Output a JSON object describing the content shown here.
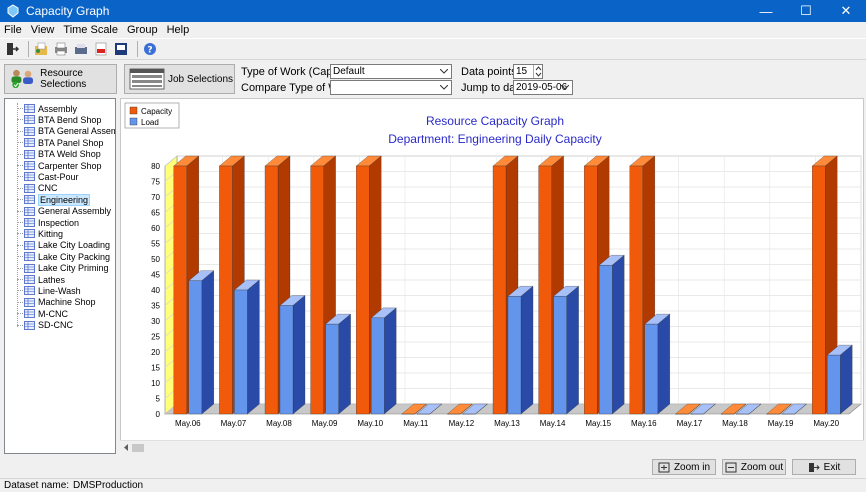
{
  "window": {
    "title": "Capacity Graph",
    "min": "—",
    "max": "☐",
    "close": "✕"
  },
  "menu": [
    "File",
    "View",
    "Time Scale",
    "Group",
    "Help"
  ],
  "toolbar_icons": [
    "exit-icon",
    "open-icon",
    "print-icon",
    "printer-setup-icon",
    "pdf-icon",
    "export-icon",
    "help-icon"
  ],
  "buttons": {
    "resource_selections": "Resource Selections",
    "job_selections": "Job Selections",
    "zoom_in": "Zoom in",
    "zoom_out": "Zoom out",
    "exit": "Exit"
  },
  "form": {
    "type_of_work_label": "Type of Work (Capacity):",
    "type_of_work_value": "Default",
    "compare_label": "Compare Type of Work:",
    "compare_value": "",
    "data_points_label": "Data points:",
    "data_points_value": "15",
    "jump_label": "Jump to date:",
    "jump_value": "2019-05-06"
  },
  "resources": {
    "items": [
      "Assembly",
      "BTA Bend Shop",
      "BTA General Assembly",
      "BTA Panel Shop",
      "BTA Weld Shop",
      "Carpenter Shop",
      "Cast-Pour",
      "CNC",
      "Engineering",
      "General Assembly",
      "Inspection",
      "Kitting",
      "Lake City Loading",
      "Lake City Packing",
      "Lake City Priming",
      "Lathes",
      "Line-Wash",
      "Machine Shop",
      "M-CNC",
      "SD-CNC"
    ],
    "selected": "Engineering"
  },
  "chart_data": {
    "type": "bar",
    "title": "Resource Capacity Graph",
    "subtitle": "Department: Engineering Daily Capacity",
    "categories": [
      "May.06",
      "May.07",
      "May.08",
      "May.09",
      "May.10",
      "May.11",
      "May.12",
      "May.13",
      "May.14",
      "May.15",
      "May.16",
      "May.17",
      "May.18",
      "May.19",
      "May.20"
    ],
    "series": [
      {
        "name": "Capacity",
        "color": "#f05a0a",
        "values": [
          80,
          80,
          80,
          80,
          80,
          0,
          0,
          80,
          80,
          80,
          80,
          0,
          0,
          0,
          80
        ]
      },
      {
        "name": "Load",
        "color": "#6495ed",
        "values": [
          43,
          40,
          35,
          29,
          31,
          0,
          0,
          38,
          38,
          48,
          29,
          0,
          0,
          0,
          19
        ]
      }
    ],
    "ylim": [
      0,
      80
    ],
    "yticks": [
      0,
      5,
      10,
      15,
      20,
      25,
      30,
      35,
      40,
      45,
      50,
      55,
      60,
      65,
      70,
      75,
      80
    ],
    "grid": true,
    "legend": "top-left"
  },
  "status": {
    "dataset_label": "Dataset name:",
    "dataset_value": "DMSProduction"
  }
}
